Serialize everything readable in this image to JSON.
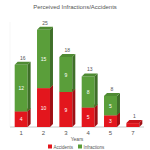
{
  "chart_data": {
    "type": "bar",
    "title": "Perceived Infractions/Accidents",
    "x_label": "Years",
    "categories": [
      "1",
      "2",
      "3",
      "4",
      "5",
      "7"
    ],
    "series": [
      {
        "name": "Accidents",
        "color": "#e3161d",
        "values": [
          4,
          10,
          9,
          5,
          3,
          1
        ]
      },
      {
        "name": "Infractions",
        "color": "#5a9e3a",
        "values": [
          12,
          15,
          9,
          8,
          5,
          0
        ]
      }
    ],
    "totals": [
      16,
      25,
      18,
      13,
      8,
      1
    ],
    "ylim": [
      0,
      27
    ],
    "stacked": true,
    "data_labels": true,
    "tick_labels": "x",
    "legend": "bottom"
  }
}
